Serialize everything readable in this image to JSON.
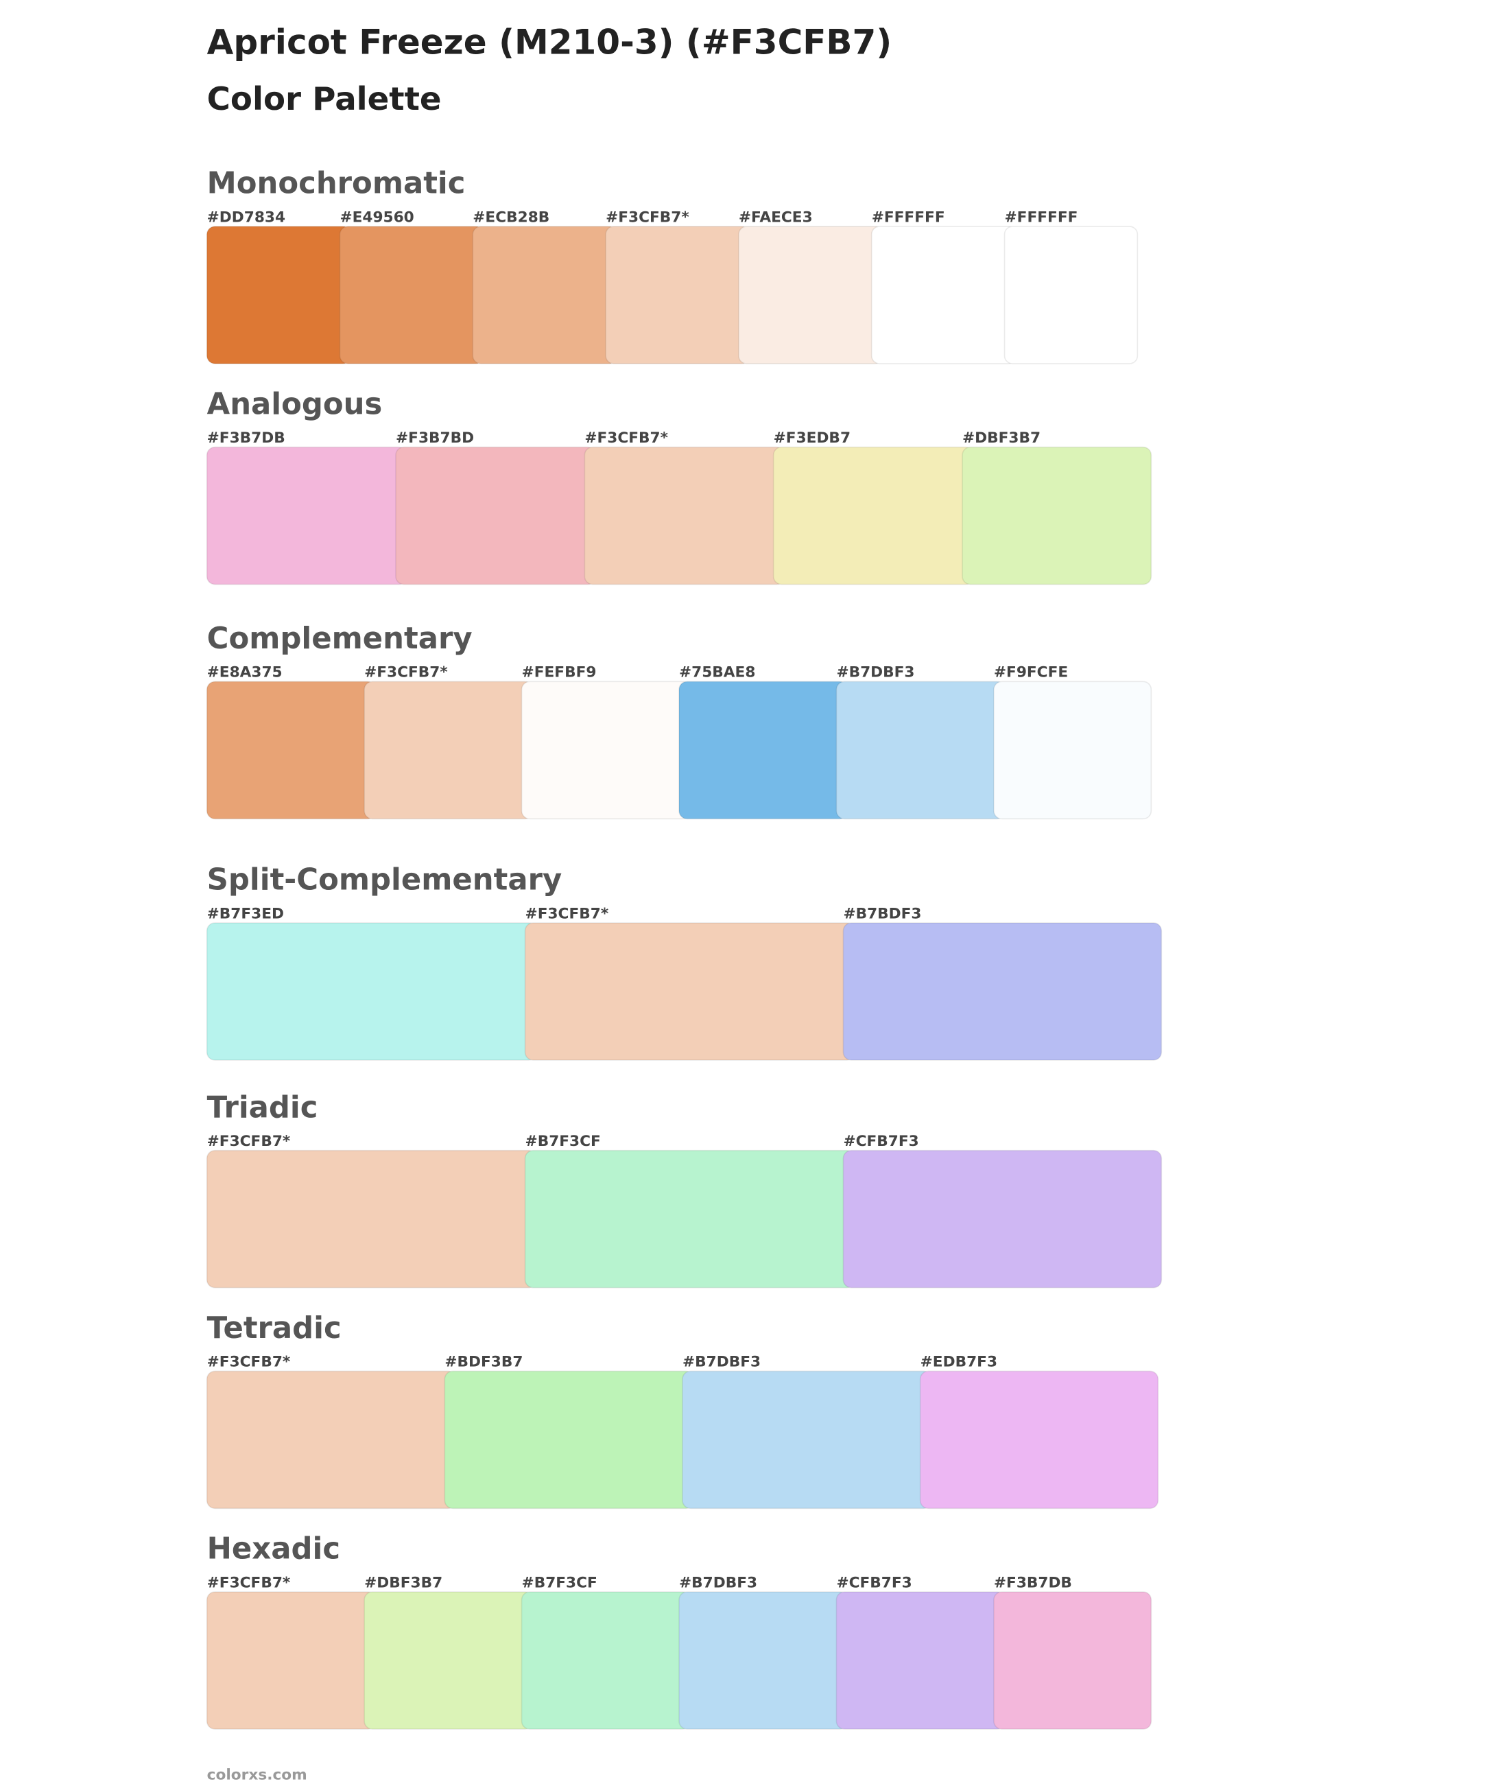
{
  "header": {
    "title": "Apricot Freeze (M210-3) (#F3CFB7)",
    "subtitle": "Color Palette"
  },
  "sections": [
    {
      "name": "Monochromatic",
      "swatches": [
        {
          "label": "#DD7834",
          "color": "#DD7834"
        },
        {
          "label": "#E49560",
          "color": "#E49560"
        },
        {
          "label": "#ECB28B",
          "color": "#ECB28B"
        },
        {
          "label": "#F3CFB7*",
          "color": "#F3CFB7"
        },
        {
          "label": "#FAECE3",
          "color": "#FAECE3"
        },
        {
          "label": "#FFFFFF",
          "color": "#FFFFFF"
        },
        {
          "label": "#FFFFFF",
          "color": "#FFFFFF"
        }
      ]
    },
    {
      "name": "Analogous",
      "swatches": [
        {
          "label": "#F3B7DB",
          "color": "#F3B7DB"
        },
        {
          "label": "#F3B7BD",
          "color": "#F3B7BD"
        },
        {
          "label": "#F3CFB7*",
          "color": "#F3CFB7"
        },
        {
          "label": "#F3EDB7",
          "color": "#F3EDB7"
        },
        {
          "label": "#DBF3B7",
          "color": "#DBF3B7"
        }
      ]
    },
    {
      "name": "Complementary",
      "swatches": [
        {
          "label": "#E8A375",
          "color": "#E8A375"
        },
        {
          "label": "#F3CFB7*",
          "color": "#F3CFB7"
        },
        {
          "label": "#FEFBF9",
          "color": "#FEFBF9"
        },
        {
          "label": "#75BAE8",
          "color": "#75BAE8"
        },
        {
          "label": "#B7DBF3",
          "color": "#B7DBF3"
        },
        {
          "label": "#F9FCFE",
          "color": "#F9FCFE"
        }
      ]
    },
    {
      "name": "Split-Complementary",
      "swatches": [
        {
          "label": "#B7F3ED",
          "color": "#B7F3ED"
        },
        {
          "label": "#F3CFB7*",
          "color": "#F3CFB7"
        },
        {
          "label": "#B7BDF3",
          "color": "#B7BDF3"
        }
      ]
    },
    {
      "name": "Triadic",
      "swatches": [
        {
          "label": "#F3CFB7*",
          "color": "#F3CFB7"
        },
        {
          "label": "#B7F3CF",
          "color": "#B7F3CF"
        },
        {
          "label": "#CFB7F3",
          "color": "#CFB7F3"
        }
      ]
    },
    {
      "name": "Tetradic",
      "swatches": [
        {
          "label": "#F3CFB7*",
          "color": "#F3CFB7"
        },
        {
          "label": "#BDF3B7",
          "color": "#BDF3B7"
        },
        {
          "label": "#B7DBF3",
          "color": "#B7DBF3"
        },
        {
          "label": "#EDB7F3",
          "color": "#EDB7F3"
        }
      ]
    },
    {
      "name": "Hexadic",
      "swatches": [
        {
          "label": "#F3CFB7*",
          "color": "#F3CFB7"
        },
        {
          "label": "#DBF3B7",
          "color": "#DBF3B7"
        },
        {
          "label": "#B7F3CF",
          "color": "#B7F3CF"
        },
        {
          "label": "#B7DBF3",
          "color": "#B7DBF3"
        },
        {
          "label": "#CFB7F3",
          "color": "#CFB7F3"
        },
        {
          "label": "#F3B7DB",
          "color": "#F3B7DB"
        }
      ]
    }
  ],
  "footer": "colorxs.com"
}
